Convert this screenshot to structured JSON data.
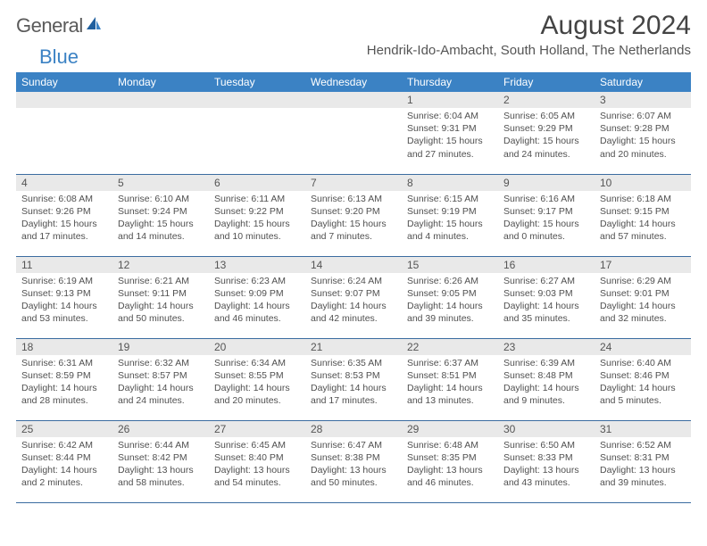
{
  "brand": {
    "part1": "General",
    "part2": "Blue"
  },
  "title": "August 2024",
  "location": "Hendrik-Ido-Ambacht, South Holland, The Netherlands",
  "colors": {
    "header_bg": "#3b82c4",
    "header_text": "#ffffff",
    "daynum_bg": "#e9e9e9",
    "border": "#3b6ca0",
    "text": "#4a4a4a"
  },
  "day_headers": [
    "Sunday",
    "Monday",
    "Tuesday",
    "Wednesday",
    "Thursday",
    "Friday",
    "Saturday"
  ],
  "weeks": [
    [
      null,
      null,
      null,
      null,
      {
        "n": "1",
        "sunrise": "6:04 AM",
        "sunset": "9:31 PM",
        "dl": "15 hours and 27 minutes."
      },
      {
        "n": "2",
        "sunrise": "6:05 AM",
        "sunset": "9:29 PM",
        "dl": "15 hours and 24 minutes."
      },
      {
        "n": "3",
        "sunrise": "6:07 AM",
        "sunset": "9:28 PM",
        "dl": "15 hours and 20 minutes."
      }
    ],
    [
      {
        "n": "4",
        "sunrise": "6:08 AM",
        "sunset": "9:26 PM",
        "dl": "15 hours and 17 minutes."
      },
      {
        "n": "5",
        "sunrise": "6:10 AM",
        "sunset": "9:24 PM",
        "dl": "15 hours and 14 minutes."
      },
      {
        "n": "6",
        "sunrise": "6:11 AM",
        "sunset": "9:22 PM",
        "dl": "15 hours and 10 minutes."
      },
      {
        "n": "7",
        "sunrise": "6:13 AM",
        "sunset": "9:20 PM",
        "dl": "15 hours and 7 minutes."
      },
      {
        "n": "8",
        "sunrise": "6:15 AM",
        "sunset": "9:19 PM",
        "dl": "15 hours and 4 minutes."
      },
      {
        "n": "9",
        "sunrise": "6:16 AM",
        "sunset": "9:17 PM",
        "dl": "15 hours and 0 minutes."
      },
      {
        "n": "10",
        "sunrise": "6:18 AM",
        "sunset": "9:15 PM",
        "dl": "14 hours and 57 minutes."
      }
    ],
    [
      {
        "n": "11",
        "sunrise": "6:19 AM",
        "sunset": "9:13 PM",
        "dl": "14 hours and 53 minutes."
      },
      {
        "n": "12",
        "sunrise": "6:21 AM",
        "sunset": "9:11 PM",
        "dl": "14 hours and 50 minutes."
      },
      {
        "n": "13",
        "sunrise": "6:23 AM",
        "sunset": "9:09 PM",
        "dl": "14 hours and 46 minutes."
      },
      {
        "n": "14",
        "sunrise": "6:24 AM",
        "sunset": "9:07 PM",
        "dl": "14 hours and 42 minutes."
      },
      {
        "n": "15",
        "sunrise": "6:26 AM",
        "sunset": "9:05 PM",
        "dl": "14 hours and 39 minutes."
      },
      {
        "n": "16",
        "sunrise": "6:27 AM",
        "sunset": "9:03 PM",
        "dl": "14 hours and 35 minutes."
      },
      {
        "n": "17",
        "sunrise": "6:29 AM",
        "sunset": "9:01 PM",
        "dl": "14 hours and 32 minutes."
      }
    ],
    [
      {
        "n": "18",
        "sunrise": "6:31 AM",
        "sunset": "8:59 PM",
        "dl": "14 hours and 28 minutes."
      },
      {
        "n": "19",
        "sunrise": "6:32 AM",
        "sunset": "8:57 PM",
        "dl": "14 hours and 24 minutes."
      },
      {
        "n": "20",
        "sunrise": "6:34 AM",
        "sunset": "8:55 PM",
        "dl": "14 hours and 20 minutes."
      },
      {
        "n": "21",
        "sunrise": "6:35 AM",
        "sunset": "8:53 PM",
        "dl": "14 hours and 17 minutes."
      },
      {
        "n": "22",
        "sunrise": "6:37 AM",
        "sunset": "8:51 PM",
        "dl": "14 hours and 13 minutes."
      },
      {
        "n": "23",
        "sunrise": "6:39 AM",
        "sunset": "8:48 PM",
        "dl": "14 hours and 9 minutes."
      },
      {
        "n": "24",
        "sunrise": "6:40 AM",
        "sunset": "8:46 PM",
        "dl": "14 hours and 5 minutes."
      }
    ],
    [
      {
        "n": "25",
        "sunrise": "6:42 AM",
        "sunset": "8:44 PM",
        "dl": "14 hours and 2 minutes."
      },
      {
        "n": "26",
        "sunrise": "6:44 AM",
        "sunset": "8:42 PM",
        "dl": "13 hours and 58 minutes."
      },
      {
        "n": "27",
        "sunrise": "6:45 AM",
        "sunset": "8:40 PM",
        "dl": "13 hours and 54 minutes."
      },
      {
        "n": "28",
        "sunrise": "6:47 AM",
        "sunset": "8:38 PM",
        "dl": "13 hours and 50 minutes."
      },
      {
        "n": "29",
        "sunrise": "6:48 AM",
        "sunset": "8:35 PM",
        "dl": "13 hours and 46 minutes."
      },
      {
        "n": "30",
        "sunrise": "6:50 AM",
        "sunset": "8:33 PM",
        "dl": "13 hours and 43 minutes."
      },
      {
        "n": "31",
        "sunrise": "6:52 AM",
        "sunset": "8:31 PM",
        "dl": "13 hours and 39 minutes."
      }
    ]
  ],
  "labels": {
    "sunrise": "Sunrise:",
    "sunset": "Sunset:",
    "daylight": "Daylight:"
  }
}
